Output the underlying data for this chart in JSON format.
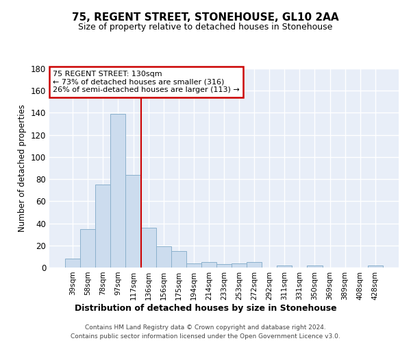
{
  "title": "75, REGENT STREET, STONEHOUSE, GL10 2AA",
  "subtitle": "Size of property relative to detached houses in Stonehouse",
  "xlabel": "Distribution of detached houses by size in Stonehouse",
  "ylabel": "Number of detached properties",
  "categories": [
    "39sqm",
    "58sqm",
    "78sqm",
    "97sqm",
    "117sqm",
    "136sqm",
    "156sqm",
    "175sqm",
    "194sqm",
    "214sqm",
    "233sqm",
    "253sqm",
    "272sqm",
    "292sqm",
    "311sqm",
    "331sqm",
    "350sqm",
    "369sqm",
    "389sqm",
    "408sqm",
    "428sqm"
  ],
  "values": [
    8,
    35,
    75,
    139,
    84,
    36,
    19,
    15,
    4,
    5,
    3,
    4,
    5,
    0,
    2,
    0,
    2,
    0,
    0,
    0,
    2
  ],
  "bar_color": "#ccdcee",
  "bar_edge_color": "#8ab0cc",
  "vline_x": 4.5,
  "vline_color": "#cc0000",
  "annotation_title": "75 REGENT STREET: 130sqm",
  "annotation_line1": "← 73% of detached houses are smaller (316)",
  "annotation_line2": "26% of semi-detached houses are larger (113) →",
  "annotation_box_edge_color": "#cc0000",
  "ylim": [
    0,
    180
  ],
  "yticks": [
    0,
    20,
    40,
    60,
    80,
    100,
    120,
    140,
    160,
    180
  ],
  "bg_color": "#e8eef8",
  "grid_color": "#ffffff",
  "footer_line1": "Contains HM Land Registry data © Crown copyright and database right 2024.",
  "footer_line2": "Contains public sector information licensed under the Open Government Licence v3.0."
}
